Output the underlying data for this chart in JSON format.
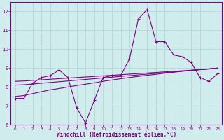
{
  "x_data": [
    0,
    1,
    2,
    3,
    4,
    5,
    6,
    7,
    8,
    9,
    10,
    11,
    12,
    13,
    14,
    15,
    16,
    17,
    18,
    19,
    20,
    21,
    22,
    23
  ],
  "main_line": [
    7.4,
    7.4,
    8.2,
    8.5,
    8.6,
    8.9,
    8.5,
    6.9,
    6.1,
    7.3,
    8.5,
    8.6,
    8.6,
    9.5,
    11.6,
    12.1,
    10.4,
    10.4,
    9.7,
    9.6,
    9.3,
    8.5,
    8.3,
    8.7
  ],
  "trend1": [
    7.5,
    7.55,
    7.65,
    7.75,
    7.85,
    7.92,
    8.0,
    8.08,
    8.15,
    8.22,
    8.3,
    8.37,
    8.44,
    8.5,
    8.56,
    8.62,
    8.67,
    8.73,
    8.78,
    8.83,
    8.88,
    8.92,
    8.96,
    9.0
  ],
  "trend2": [
    8.1,
    8.12,
    8.16,
    8.2,
    8.24,
    8.28,
    8.32,
    8.36,
    8.4,
    8.44,
    8.48,
    8.52,
    8.56,
    8.6,
    8.64,
    8.68,
    8.72,
    8.76,
    8.8,
    8.84,
    8.88,
    8.92,
    8.96,
    9.0
  ],
  "trend3": [
    8.3,
    8.32,
    8.35,
    8.38,
    8.41,
    8.44,
    8.47,
    8.5,
    8.53,
    8.56,
    8.59,
    8.62,
    8.65,
    8.68,
    8.71,
    8.74,
    8.77,
    8.8,
    8.83,
    8.86,
    8.89,
    8.92,
    8.95,
    9.0
  ],
  "line_color": "#800080",
  "bg_color": "#d0ecec",
  "grid_color": "#aad4d4",
  "xlabel": "Windchill (Refroidissement éolien,°C)",
  "ylim": [
    6,
    12.5
  ],
  "xlim": [
    -0.5,
    23.5
  ],
  "yticks": [
    6,
    7,
    8,
    9,
    10,
    11,
    12
  ],
  "xticks": [
    0,
    1,
    2,
    3,
    4,
    5,
    6,
    7,
    8,
    9,
    10,
    11,
    12,
    13,
    14,
    15,
    16,
    17,
    18,
    19,
    20,
    21,
    22,
    23
  ]
}
